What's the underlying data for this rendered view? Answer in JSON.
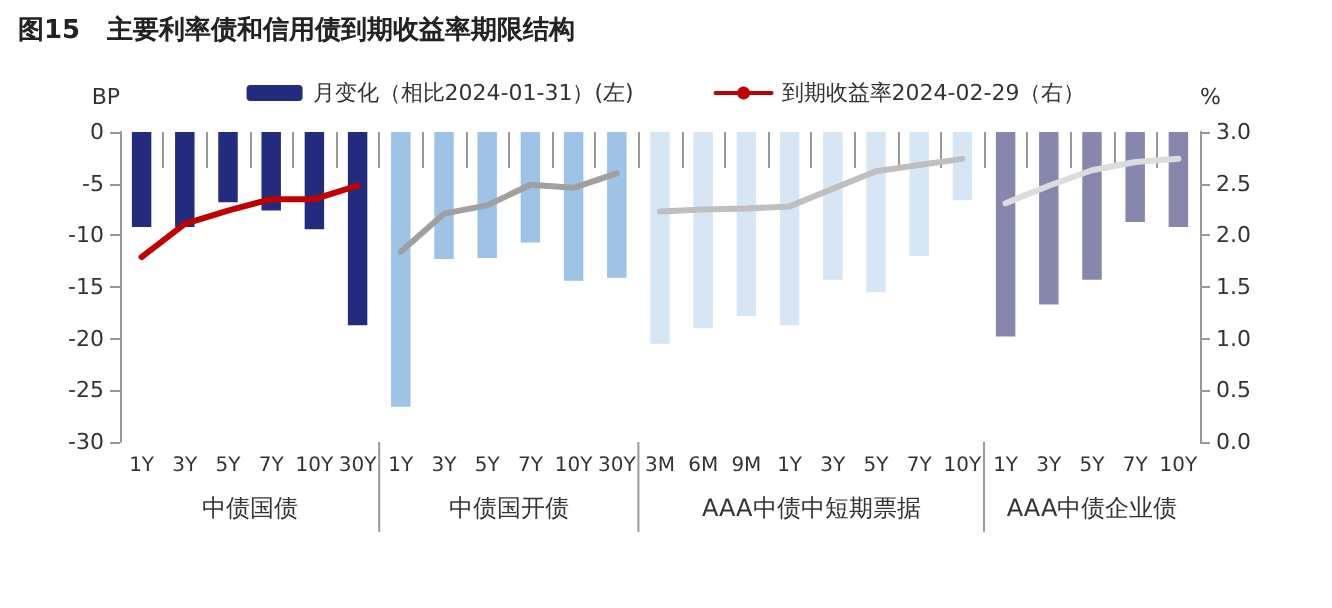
{
  "chart_data": {
    "type": "bar",
    "title": "图15   主要利率债和信用债到期收益率期限结构",
    "categories": [
      "1Y",
      "3Y",
      "5Y",
      "7Y",
      "10Y",
      "30Y",
      "1Y",
      "3Y",
      "5Y",
      "7Y",
      "10Y",
      "30Y",
      "3M",
      "6M",
      "9M",
      "1Y",
      "3Y",
      "5Y",
      "7Y",
      "10Y",
      "1Y",
      "3Y",
      "5Y",
      "7Y",
      "10Y"
    ],
    "ylabel": "BP",
    "y2label": "%",
    "ylim": [
      -30,
      0
    ],
    "yticks": [
      -30,
      -25,
      -20,
      -15,
      -10,
      -5,
      0
    ],
    "y2lim": [
      0,
      3
    ],
    "y2ticks": [
      {
        "value": 0,
        "label": "0.0"
      },
      {
        "value": 0.5,
        "label": "0.5"
      },
      {
        "value": 1,
        "label": "1.0"
      },
      {
        "value": 1.5,
        "label": "1.5"
      },
      {
        "value": 2,
        "label": "2.0"
      },
      {
        "value": 2.5,
        "label": "2.5"
      },
      {
        "value": 3,
        "label": "3.0"
      }
    ],
    "legend": "top",
    "grid": false,
    "marker": "none",
    "annotations": [
      "中债国债",
      "中债国开债",
      "AAA中债中短期票据",
      "AAA中债企业债"
    ],
    "series": [
      {
        "name": "月变化（相比2024-01-31）(左)",
        "colors": [
          "#222b7e",
          "#222b7e",
          "#222b7e",
          "#222b7e",
          "#222b7e",
          "#222b7e",
          "#9dc3e6",
          "#9dc3e6",
          "#9dc3e6",
          "#9dc3e6",
          "#9dc3e6",
          "#9dc3e6",
          "#d6e6f5",
          "#d6e6f5",
          "#d6e6f5",
          "#d6e6f5",
          "#d6e6f5",
          "#d6e6f5",
          "#d6e6f5",
          "#d6e6f5",
          "#8787ad",
          "#8787ad",
          "#8787ad",
          "#8787ad",
          "#8787ad"
        ],
        "values": [
          -9.2,
          -9.2,
          -6.8,
          -7.6,
          -9.4,
          -18.7,
          -26.6,
          -12.3,
          -12.2,
          -10.7,
          -14.4,
          -14.1,
          -20.5,
          -19.0,
          -17.8,
          -18.7,
          -14.3,
          -15.5,
          -12.0,
          -6.6,
          -19.8,
          -16.7,
          -14.3,
          -8.7,
          -9.2
        ]
      },
      {
        "type": "line",
        "axis": "y2",
        "name": "到期收益率2024-02-29（右）",
        "color": "#c00000",
        "values": [
          1.79,
          2.11,
          2.24,
          2.35,
          2.35,
          2.48,
          null,
          null,
          null,
          null,
          null,
          null,
          null,
          null,
          null,
          null,
          null,
          null,
          null,
          null,
          null,
          null,
          null,
          null,
          null
        ]
      },
      {
        "type": "line",
        "axis": "y2",
        "color": "#a0a0a0",
        "values": [
          null,
          null,
          null,
          null,
          null,
          null,
          1.84,
          2.21,
          2.29,
          2.49,
          2.46,
          2.6,
          null,
          null,
          null,
          null,
          null,
          null,
          null,
          null,
          null,
          null,
          null,
          null,
          null
        ]
      },
      {
        "type": "line",
        "axis": "y2",
        "color": "#bfbfbf",
        "values": [
          null,
          null,
          null,
          null,
          null,
          null,
          null,
          null,
          null,
          null,
          null,
          null,
          2.23,
          2.25,
          2.26,
          2.28,
          2.45,
          2.62,
          2.68,
          2.74,
          null,
          null,
          null,
          null,
          null
        ]
      },
      {
        "type": "line",
        "axis": "y2",
        "color": "#dcdcdc",
        "values": [
          null,
          null,
          null,
          null,
          null,
          null,
          null,
          null,
          null,
          null,
          null,
          null,
          null,
          null,
          null,
          null,
          null,
          null,
          null,
          null,
          2.31,
          2.48,
          2.63,
          2.71,
          2.74
        ]
      }
    ]
  }
}
